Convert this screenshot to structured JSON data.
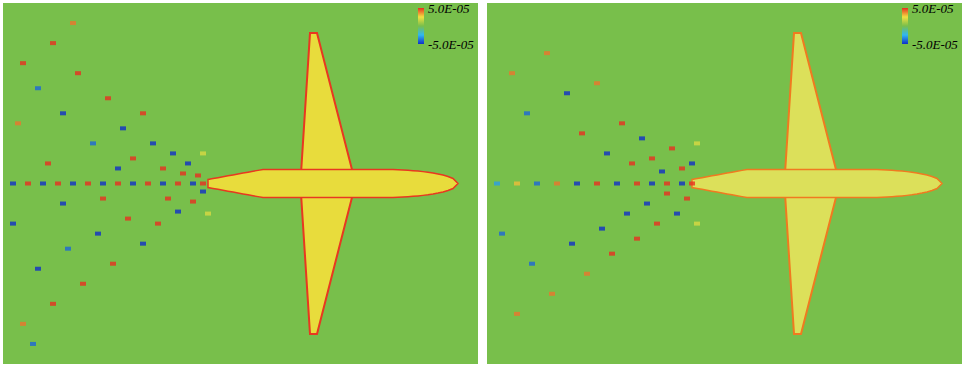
{
  "chart_data": [
    {
      "type": "scatter",
      "xlim": [
        0,
        475
      ],
      "ylim": [
        -180,
        180
      ],
      "tick_labels": false,
      "marker": "square",
      "colorbar": {
        "range": [
          -5e-05,
          5e-05
        ],
        "ticks": [
          {
            "value": 5e-05,
            "label": "5.0E-05"
          },
          {
            "value": -5e-05,
            "label": "-5.0E-05"
          }
        ]
      },
      "cells": [
        [
          10,
          0,
          -5e-05
        ],
        [
          25,
          0,
          5e-05
        ],
        [
          40,
          0,
          -5e-05
        ],
        [
          55,
          0,
          5e-05
        ],
        [
          70,
          0,
          -5e-05
        ],
        [
          85,
          0,
          5e-05
        ],
        [
          100,
          0,
          -5e-05
        ],
        [
          115,
          0,
          5e-05
        ],
        [
          130,
          0,
          -5e-05
        ],
        [
          145,
          0,
          5e-05
        ],
        [
          160,
          0,
          -5e-05
        ],
        [
          175,
          0,
          5e-05
        ],
        [
          190,
          0,
          -5e-05
        ],
        [
          200,
          0,
          5e-05
        ],
        [
          20,
          120,
          5e-05
        ],
        [
          35,
          95,
          -4e-05
        ],
        [
          15,
          60,
          4e-05
        ],
        [
          50,
          140,
          5e-05
        ],
        [
          60,
          70,
          -5e-05
        ],
        [
          75,
          110,
          5e-05
        ],
        [
          90,
          40,
          -4e-05
        ],
        [
          105,
          85,
          5e-05
        ],
        [
          120,
          55,
          -5e-05
        ],
        [
          130,
          25,
          5e-05
        ],
        [
          140,
          70,
          5e-05
        ],
        [
          150,
          40,
          -5e-05
        ],
        [
          160,
          15,
          5e-05
        ],
        [
          170,
          30,
          -5e-05
        ],
        [
          180,
          10,
          5e-05
        ],
        [
          185,
          20,
          -5e-05
        ],
        [
          195,
          8,
          5e-05
        ],
        [
          200,
          -8,
          -5e-05
        ],
        [
          190,
          -18,
          5e-05
        ],
        [
          175,
          -28,
          -5e-05
        ],
        [
          165,
          -15,
          5e-05
        ],
        [
          155,
          -40,
          5e-05
        ],
        [
          140,
          -60,
          -5e-05
        ],
        [
          125,
          -35,
          5e-05
        ],
        [
          110,
          -80,
          5e-05
        ],
        [
          95,
          -50,
          -5e-05
        ],
        [
          80,
          -100,
          5e-05
        ],
        [
          65,
          -65,
          -4e-05
        ],
        [
          50,
          -120,
          5e-05
        ],
        [
          35,
          -85,
          -5e-05
        ],
        [
          20,
          -140,
          4e-05
        ],
        [
          10,
          -40,
          -5e-05
        ],
        [
          45,
          20,
          5e-05
        ],
        [
          60,
          -20,
          -5e-05
        ],
        [
          100,
          -15,
          5e-05
        ],
        [
          115,
          15,
          -5e-05
        ],
        [
          70,
          160,
          4e-05
        ],
        [
          30,
          -160,
          -4e-05
        ],
        [
          200,
          30,
          2e-05
        ],
        [
          205,
          -30,
          2e-05
        ]
      ]
    },
    {
      "type": "scatter",
      "xlim": [
        0,
        475
      ],
      "ylim": [
        -180,
        180
      ],
      "tick_labels": false,
      "marker": "square",
      "colorbar": {
        "range": [
          -5e-05,
          5e-05
        ],
        "ticks": [
          {
            "value": 5e-05,
            "label": "5.0E-05"
          },
          {
            "value": -5e-05,
            "label": "-5.0E-05"
          }
        ]
      },
      "cells": [
        [
          10,
          0,
          -3e-05
        ],
        [
          30,
          0,
          3e-05
        ],
        [
          50,
          0,
          -4e-05
        ],
        [
          70,
          0,
          4e-05
        ],
        [
          90,
          0,
          -5e-05
        ],
        [
          110,
          0,
          5e-05
        ],
        [
          130,
          0,
          -5e-05
        ],
        [
          150,
          0,
          5e-05
        ],
        [
          165,
          0,
          -5e-05
        ],
        [
          180,
          0,
          5e-05
        ],
        [
          195,
          0,
          -5e-05
        ],
        [
          205,
          0,
          5e-05
        ],
        [
          25,
          110,
          4e-05
        ],
        [
          40,
          70,
          -4e-05
        ],
        [
          60,
          130,
          4e-05
        ],
        [
          80,
          90,
          -5e-05
        ],
        [
          95,
          50,
          5e-05
        ],
        [
          110,
          100,
          4e-05
        ],
        [
          120,
          30,
          -5e-05
        ],
        [
          135,
          60,
          5e-05
        ],
        [
          145,
          20,
          5e-05
        ],
        [
          155,
          45,
          -5e-05
        ],
        [
          165,
          25,
          5e-05
        ],
        [
          175,
          12,
          -5e-05
        ],
        [
          185,
          35,
          5e-05
        ],
        [
          195,
          15,
          5e-05
        ],
        [
          205,
          20,
          -5e-05
        ],
        [
          200,
          -15,
          5e-05
        ],
        [
          190,
          -30,
          -5e-05
        ],
        [
          180,
          -10,
          5e-05
        ],
        [
          170,
          -40,
          5e-05
        ],
        [
          160,
          -20,
          -5e-05
        ],
        [
          150,
          -55,
          5e-05
        ],
        [
          140,
          -30,
          -5e-05
        ],
        [
          125,
          -70,
          5e-05
        ],
        [
          115,
          -45,
          -5e-05
        ],
        [
          100,
          -90,
          4e-05
        ],
        [
          85,
          -60,
          -5e-05
        ],
        [
          65,
          -110,
          4e-05
        ],
        [
          45,
          -80,
          -4e-05
        ],
        [
          30,
          -130,
          4e-05
        ],
        [
          15,
          -50,
          -4e-05
        ],
        [
          210,
          40,
          2e-05
        ],
        [
          210,
          -40,
          2e-05
        ]
      ]
    }
  ]
}
